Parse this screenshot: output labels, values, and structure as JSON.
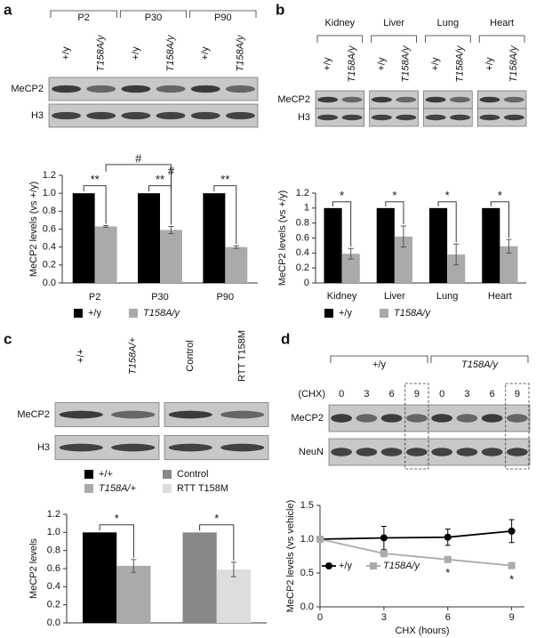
{
  "chart_data": [
    {
      "type": "bar",
      "panel": "a",
      "blot": {
        "groups": [
          "P2",
          "P30",
          "P90"
        ],
        "lanes": [
          "+/y",
          "T158A/y",
          "+/y",
          "T158A/y",
          "+/y",
          "T158A/y"
        ],
        "rows": [
          "MeCP2",
          "H3"
        ]
      },
      "categories": [
        "P2",
        "P30",
        "P90"
      ],
      "series": [
        {
          "name": "+/y",
          "color": "#000000",
          "values": [
            1,
            1,
            1
          ],
          "errors": [
            0,
            0,
            0
          ]
        },
        {
          "name": "T158A/y",
          "color": "#aaaaaa",
          "values": [
            0.63,
            0.59,
            0.4
          ],
          "errors": [
            0.01,
            0.04,
            0.015
          ]
        }
      ],
      "ylabel": "MeCP2 levels (vs +/y)",
      "ylim": [
        0,
        1.2
      ],
      "yticks": [
        {
          "value": 0,
          "label": "0.0"
        },
        {
          "value": 0.2,
          "label": "0.2"
        },
        {
          "value": 0.4,
          "label": "0.4"
        },
        {
          "value": 0.6,
          "label": "0.6"
        },
        {
          "value": 0.8,
          "label": "0.8"
        },
        {
          "value": 1,
          "label": "1.0"
        },
        {
          "value": 1.2,
          "label": "1.2"
        }
      ],
      "significance": [
        "**",
        "**",
        "**",
        "#",
        "#"
      ]
    },
    {
      "type": "bar",
      "panel": "b",
      "blot": {
        "groups": [
          "Kidney",
          "Liver",
          "Lung",
          "Heart"
        ],
        "lanes": [
          "+/y",
          "T158A/y",
          "+/y",
          "T158A/y",
          "+/y",
          "T158A/y",
          "+/y",
          "T158A/y"
        ],
        "rows": [
          "MeCP2",
          "H3"
        ]
      },
      "categories": [
        "Kidney",
        "Liver",
        "Lung",
        "Heart"
      ],
      "series": [
        {
          "name": "+/y",
          "color": "#000000",
          "values": [
            1,
            1,
            1,
            1
          ],
          "errors": [
            0,
            0,
            0,
            0
          ]
        },
        {
          "name": "T158A/y",
          "color": "#aaaaaa",
          "values": [
            0.39,
            0.62,
            0.38,
            0.49
          ],
          "errors": [
            0.07,
            0.14,
            0.14,
            0.09
          ]
        }
      ],
      "ylabel": "MeCP2 levels (vs +/y)",
      "ylim": [
        0,
        1.2
      ],
      "yticks": [
        0,
        0.2,
        0.4,
        0.6,
        0.8,
        1,
        1.2
      ],
      "significance": [
        "*",
        "*",
        "*",
        "*"
      ]
    },
    {
      "type": "bar",
      "panel": "c",
      "blot": {
        "lanes": [
          "+/+",
          "T158A/+",
          "Control",
          "RTT T158M"
        ],
        "rows": [
          "MeCP2",
          "H3"
        ]
      },
      "categories": [
        null,
        null
      ],
      "series": [
        {
          "name": "+/+",
          "color": "#000000",
          "values": [
            1,
            null
          ],
          "errors": [
            0,
            null
          ]
        },
        {
          "name": "T158A/+",
          "color": "#aaaaaa",
          "values": [
            0.63,
            null
          ],
          "errors": [
            0.07,
            null
          ]
        },
        {
          "name": "Control",
          "color": "#888888",
          "values": [
            null,
            1
          ],
          "errors": [
            null,
            0
          ]
        },
        {
          "name": "RTT T158M",
          "color": "#dddddd",
          "values": [
            null,
            0.59
          ],
          "errors": [
            null,
            0.08
          ]
        }
      ],
      "ylabel": "MeCP2 levels",
      "ylim": [
        0,
        1.2
      ],
      "yticks": [
        {
          "value": 0,
          "label": "0.0"
        },
        {
          "value": 0.2,
          "label": "0.2"
        },
        {
          "value": 0.4,
          "label": "0.4"
        },
        {
          "value": 0.6,
          "label": "0.6"
        },
        {
          "value": 0.8,
          "label": "0.8"
        },
        {
          "value": 1,
          "label": "1.0"
        },
        {
          "value": 1.2,
          "label": "1.2"
        }
      ],
      "significance": [
        "*",
        "*"
      ]
    },
    {
      "type": "line",
      "panel": "d",
      "blot": {
        "groups": [
          "+/y",
          "T158A/y"
        ],
        "lane_title": "(CHX)",
        "lanes": [
          "0",
          "3",
          "6",
          "9",
          "0",
          "3",
          "6",
          "9"
        ],
        "rows": [
          "MeCP2",
          "NeuN"
        ]
      },
      "x": [
        0,
        3,
        6,
        9
      ],
      "series": [
        {
          "name": "+/y",
          "color": "#000000",
          "values": [
            1,
            1.02,
            1.03,
            1.12
          ],
          "errors": [
            0,
            0.17,
            0.12,
            0.17
          ]
        },
        {
          "name": "T158A/y",
          "color": "#aaaaaa",
          "values": [
            1,
            0.79,
            0.7,
            0.61
          ],
          "errors": [
            0,
            0.05,
            0.02,
            0.03
          ]
        }
      ],
      "xlabel": "CHX (hours)",
      "ylabel": "MeCP2 levels (vs vehicle)",
      "xlim": [
        0,
        9.6
      ],
      "xticks": [
        0,
        3,
        6,
        9
      ],
      "ylim": [
        0,
        1.5
      ],
      "yticks": [
        {
          "value": 0,
          "label": "0.0"
        },
        {
          "value": 0.5,
          "label": "0.5"
        },
        {
          "value": 1,
          "label": "1.0"
        },
        {
          "value": 1.5,
          "label": "1.5"
        }
      ],
      "significance": [
        "*",
        "*"
      ]
    }
  ]
}
